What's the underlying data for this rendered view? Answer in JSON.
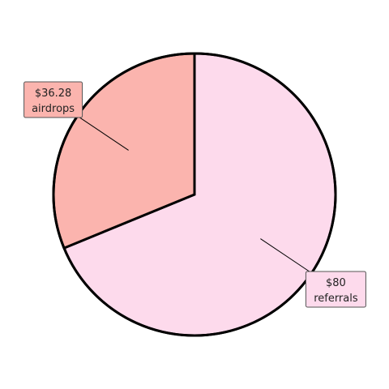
{
  "chart_data": {
    "type": "pie",
    "slices": [
      {
        "label": "referrals",
        "value": 80,
        "value_text": "$80",
        "color": "#fddaec"
      },
      {
        "label": "airdrops",
        "value": 36.28,
        "value_text": "$36.28",
        "color": "#fbb4ae"
      }
    ],
    "start": "top",
    "direction": "clockwise",
    "edge_color": "#000000",
    "legend": "none",
    "title": ""
  }
}
